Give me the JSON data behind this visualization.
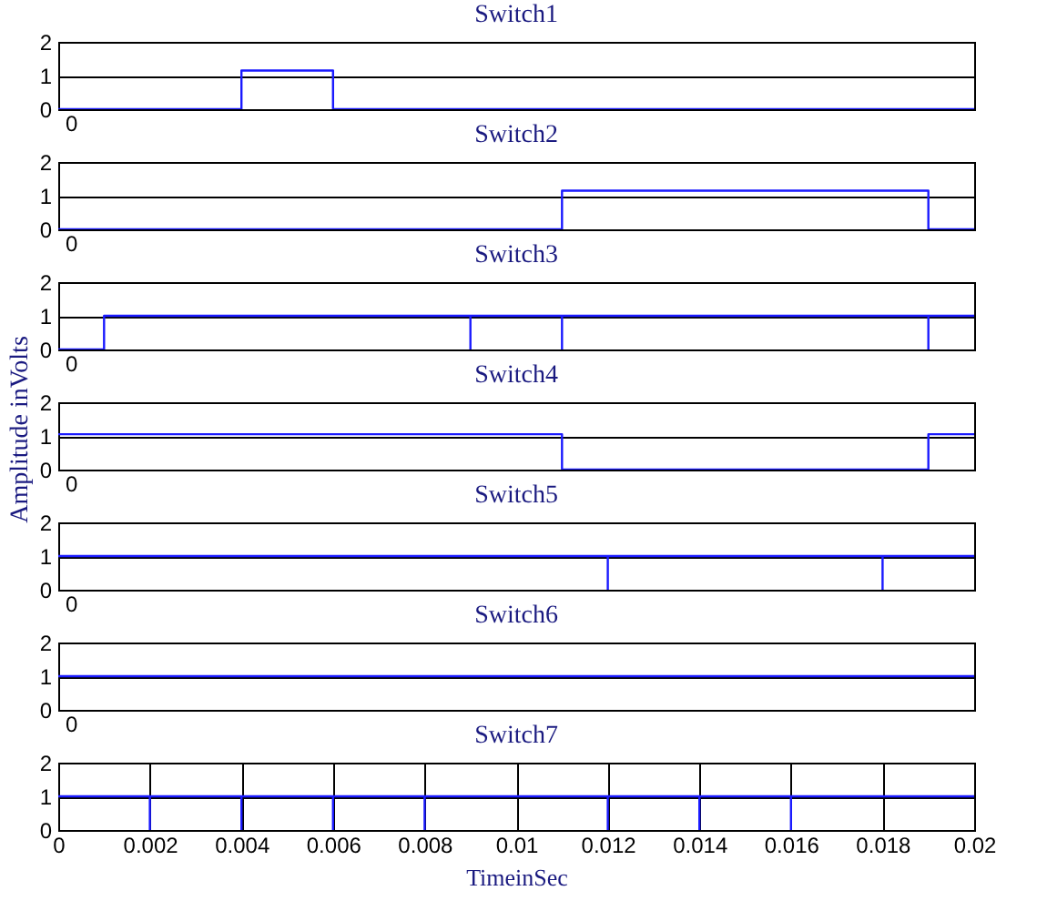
{
  "chart_data": [
    {
      "type": "line",
      "title": "Switch1",
      "annotations": [
        "0"
      ],
      "series": [
        {
          "color": "#1a1aff",
          "x": [
            0,
            0.004,
            0.004,
            0.006,
            0.006,
            0.02
          ],
          "values": [
            0,
            0,
            1.15,
            1.15,
            0,
            0
          ]
        }
      ],
      "xlim": [
        0,
        0.02
      ],
      "ylim": [
        0,
        2
      ],
      "yticks": [
        0,
        1,
        2
      ],
      "grid": "y",
      "tick_labels": "y"
    },
    {
      "type": "line",
      "title": "Switch2",
      "annotations": [
        "0"
      ],
      "series": [
        {
          "color": "#1a1aff",
          "x": [
            0,
            0.011,
            0.011,
            0.019,
            0.019,
            0.02
          ],
          "values": [
            0,
            0,
            1.15,
            1.15,
            0,
            0
          ]
        }
      ],
      "xlim": [
        0,
        0.02
      ],
      "ylim": [
        0,
        2
      ],
      "yticks": [
        0,
        1,
        2
      ],
      "grid": "y",
      "tick_labels": "y"
    },
    {
      "type": "line",
      "title": "Switch3",
      "annotations": [
        "0"
      ],
      "series": [
        {
          "color": "#1a1aff",
          "x": [
            0,
            0.001,
            0.001,
            0.009,
            0.009,
            0.009,
            0.011,
            0.011,
            0.011,
            0.019,
            0.019,
            0.019,
            0.02
          ],
          "values": [
            0,
            0,
            1,
            1,
            0,
            1,
            1,
            0,
            1,
            1,
            0,
            1,
            1
          ]
        }
      ],
      "xlim": [
        0,
        0.02
      ],
      "ylim": [
        0,
        2
      ],
      "yticks": [
        0,
        1,
        2
      ],
      "grid": "y",
      "tick_labels": "y"
    },
    {
      "type": "line",
      "title": "Switch4",
      "ylabel": "Amplitude inVolts",
      "annotations": [
        "0"
      ],
      "series": [
        {
          "color": "#1a1aff",
          "x": [
            0,
            0.011,
            0.011,
            0.019,
            0.019,
            0.02
          ],
          "values": [
            1.05,
            1.05,
            0,
            0,
            1.05,
            1.05
          ]
        }
      ],
      "xlim": [
        0,
        0.02
      ],
      "ylim": [
        0,
        2
      ],
      "yticks": [
        0,
        1,
        2
      ],
      "grid": "y",
      "tick_labels": "y"
    },
    {
      "type": "line",
      "title": "Switch5",
      "annotations": [
        "0"
      ],
      "series": [
        {
          "color": "#1a1aff",
          "x": [
            0,
            0.012,
            0.012,
            0.012,
            0.018,
            0.018,
            0.018,
            0.02
          ],
          "values": [
            1,
            1,
            0,
            1,
            1,
            0,
            1,
            1
          ]
        }
      ],
      "xlim": [
        0,
        0.02
      ],
      "ylim": [
        0,
        2
      ],
      "yticks": [
        0,
        1,
        2
      ],
      "grid": "y",
      "tick_labels": "y"
    },
    {
      "type": "line",
      "title": "Switch6",
      "annotations": [
        "0"
      ],
      "series": [
        {
          "color": "#1a1aff",
          "x": [
            0,
            0.02
          ],
          "values": [
            1,
            1
          ]
        }
      ],
      "xlim": [
        0,
        0.02
      ],
      "ylim": [
        0,
        2
      ],
      "yticks": [
        0,
        1,
        2
      ],
      "grid": "y",
      "tick_labels": "y"
    },
    {
      "type": "line",
      "title": "Switch7",
      "xlabel": "TimeinSec",
      "series": [
        {
          "color": "#1a1aff",
          "x": [
            0,
            0.002,
            0.002,
            0.002,
            0.004,
            0.004,
            0.004,
            0.006,
            0.006,
            0.006,
            0.008,
            0.008,
            0.008,
            0.012,
            0.012,
            0.012,
            0.014,
            0.014,
            0.014,
            0.016,
            0.016,
            0.016,
            0.02
          ],
          "values": [
            1,
            1,
            0,
            1,
            1,
            0,
            1,
            1,
            0,
            1,
            1,
            0,
            1,
            1,
            0,
            1,
            1,
            0,
            1,
            1,
            0,
            1,
            1
          ]
        }
      ],
      "xlim": [
        0,
        0.02
      ],
      "xticks": [
        0,
        0.002,
        0.004,
        0.006,
        0.008,
        0.01,
        0.012,
        0.014,
        0.016,
        0.018,
        0.02
      ],
      "ylim": [
        0,
        2
      ],
      "yticks": [
        0,
        1,
        2
      ],
      "grid": true
    }
  ]
}
